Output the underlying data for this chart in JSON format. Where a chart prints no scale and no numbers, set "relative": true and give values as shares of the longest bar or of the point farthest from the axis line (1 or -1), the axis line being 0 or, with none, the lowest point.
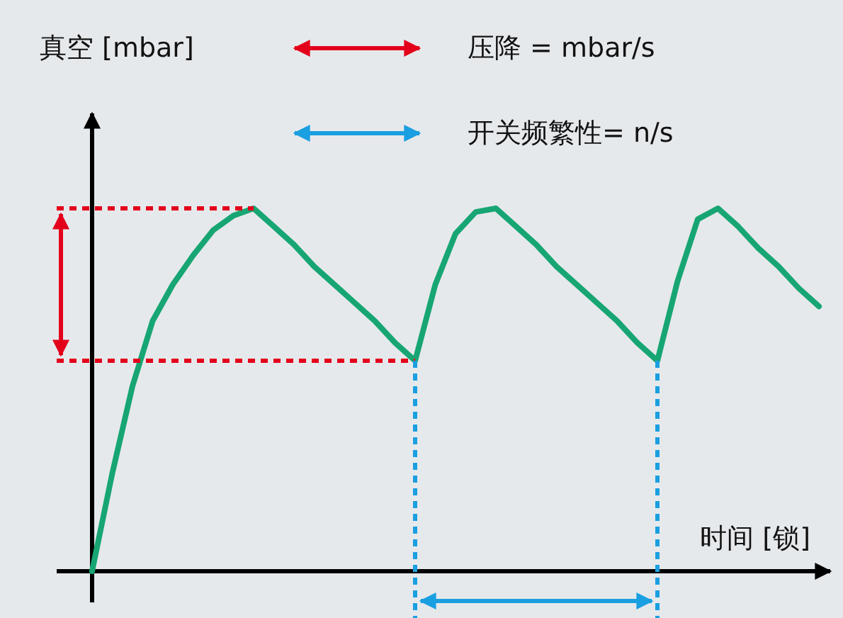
{
  "chart_data": {
    "type": "line",
    "relative": true,
    "xlabel": "时间 [锁]",
    "annotations": [
      "真空 [mbar]",
      "压降 = mbar/s",
      "开关频繁性= n/s"
    ],
    "categories": [
      null,
      null,
      null,
      null,
      null,
      null,
      null,
      null,
      null,
      null,
      null,
      null,
      null,
      null,
      null,
      null,
      null,
      null,
      null,
      null,
      null,
      null,
      null,
      null,
      null,
      null,
      null,
      null,
      null,
      null,
      null,
      null,
      null,
      null,
      null,
      null,
      null
    ],
    "series": [
      {
        "color": "#17a673",
        "values": [
          0,
          0.27,
          0.51,
          0.69,
          0.79,
          0.87,
          0.94,
          0.98,
          1,
          0.95,
          0.9,
          0.84,
          0.79,
          0.74,
          0.69,
          0.63,
          0.58,
          0.79,
          0.93,
          0.99,
          1,
          0.95,
          0.9,
          0.84,
          0.79,
          0.74,
          0.69,
          0.63,
          0.58,
          0.8,
          0.97,
          1,
          0.95,
          0.89,
          0.84,
          0.78,
          0.73
        ]
      }
    ],
    "ref_lines": [
      {
        "axis": "y",
        "value": 1,
        "color": "#e3001b",
        "line_style": "dotted"
      },
      {
        "axis": "y",
        "value": 0.58,
        "color": "#e3001b",
        "line_style": "dotted"
      }
    ]
  }
}
